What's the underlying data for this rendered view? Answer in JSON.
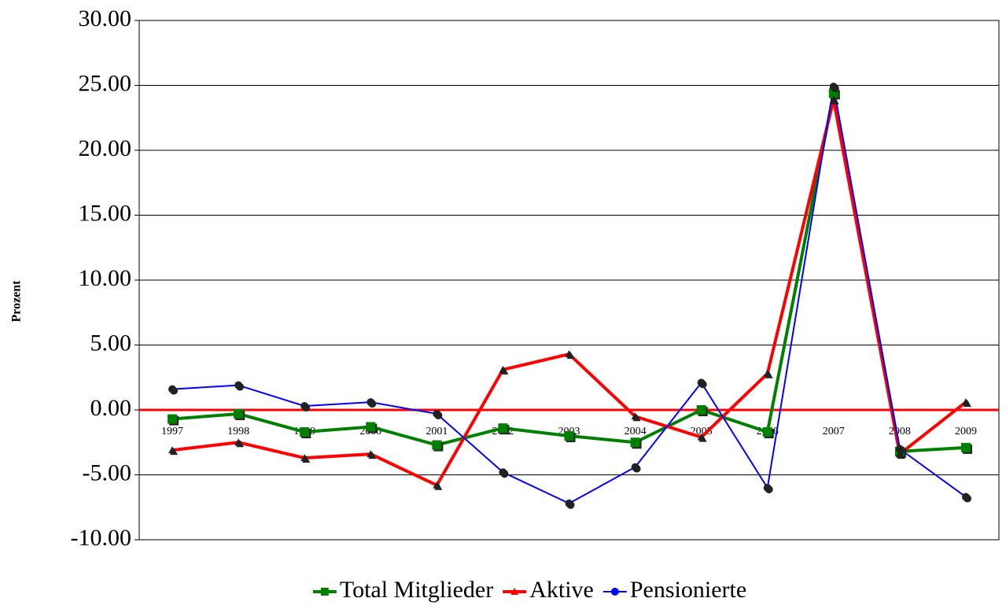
{
  "chart_data": {
    "type": "line",
    "ylabel": "Prozent",
    "categories": [
      "1997",
      "1998",
      "1999",
      "2000",
      "2001",
      "2002",
      "2003",
      "2004",
      "2005",
      "2006",
      "2007",
      "2008",
      "2009"
    ],
    "series": [
      {
        "name": "Total Mitglieder",
        "color": "#008000",
        "marker": "square",
        "values": [
          -0.7,
          -0.3,
          -1.7,
          -1.3,
          -2.7,
          -1.4,
          -2.0,
          -2.5,
          0.0,
          -1.7,
          24.4,
          -3.2,
          -2.9
        ]
      },
      {
        "name": "Aktive",
        "color": "#ff0000",
        "marker": "triangle",
        "values": [
          -3.1,
          -2.5,
          -3.7,
          -3.4,
          -5.8,
          3.1,
          4.3,
          -0.5,
          -2.1,
          2.8,
          23.9,
          -3.4,
          0.6
        ]
      },
      {
        "name": "Pensionierte",
        "color": "#0000ff",
        "marker": "circle",
        "values": [
          1.6,
          1.9,
          0.3,
          0.6,
          -0.3,
          -4.8,
          -7.2,
          -4.4,
          2.1,
          -6.0,
          24.9,
          -3.0,
          -6.7
        ]
      }
    ],
    "ylim": [
      -10,
      30
    ],
    "yticks": [
      {
        "value": -10,
        "label": "-10.00"
      },
      {
        "value": -5,
        "label": "-5.00"
      },
      {
        "value": 0,
        "label": "0.00"
      },
      {
        "value": 5,
        "label": "5.00"
      },
      {
        "value": 10,
        "label": "10.00"
      },
      {
        "value": 15,
        "label": "15.00"
      },
      {
        "value": 20,
        "label": "20.00"
      },
      {
        "value": 25,
        "label": "25.00"
      },
      {
        "value": 30,
        "label": "30.00"
      }
    ],
    "grid": true,
    "zero_line_color": "#ff0000",
    "legend": "bottom"
  }
}
